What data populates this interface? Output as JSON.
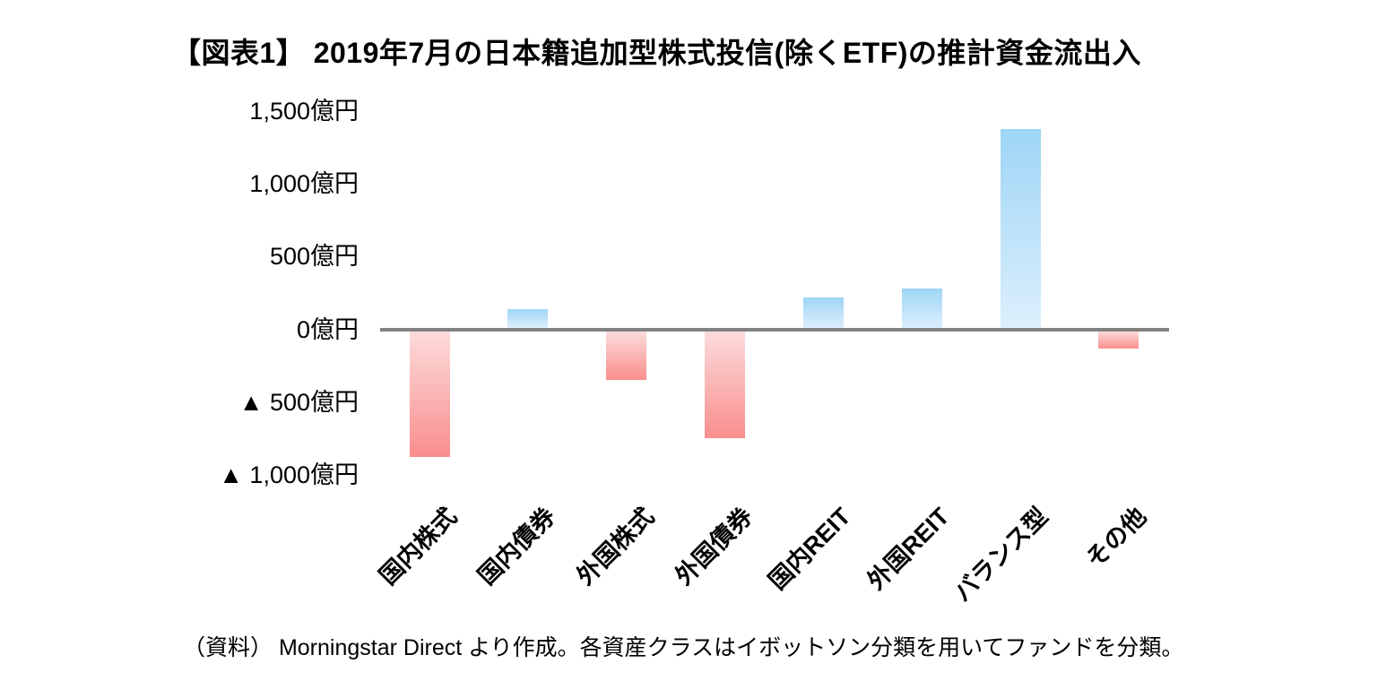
{
  "page": {
    "title": "【図表1】 2019年7月の日本籍追加型株式投信(除くETF)の推計資金流出入",
    "footnote": "（資料） Morningstar Direct より作成。各資産クラスはイボットソン分類を用いてファンドを分類。"
  },
  "chart_data": {
    "type": "bar",
    "title": "【図表1】 2019年7月の日本籍追加型株式投信(除くETF)の推計資金流出入",
    "unit": "億円",
    "categories": [
      "国内株式",
      "国内債券",
      "外国株式",
      "外国債券",
      "国内REIT",
      "外国REIT",
      "バランス型",
      "その他"
    ],
    "values": [
      -860,
      130,
      -330,
      -730,
      210,
      270,
      1370,
      -120
    ],
    "ytick_labels": [
      "1,500億円",
      "1,000億円",
      "500億円",
      "0億円",
      "▲ 500億円",
      "▲ 1,000億円"
    ],
    "ytick_values": [
      1500,
      1000,
      500,
      0,
      -500,
      -1000
    ],
    "ylim": [
      -1000,
      1500
    ],
    "xlabel": "",
    "ylabel": "",
    "grid": false,
    "legend": "none",
    "annotations": [],
    "colors": {
      "positive_bar_top": "#9ed5f6",
      "positive_bar_bottom": "#dceffc",
      "negative_bar_top": "#fcdbdb",
      "negative_bar_bottom": "#fa8e8e",
      "axis_line": "#828282",
      "text": "#000000",
      "background": "#ffffff"
    }
  }
}
